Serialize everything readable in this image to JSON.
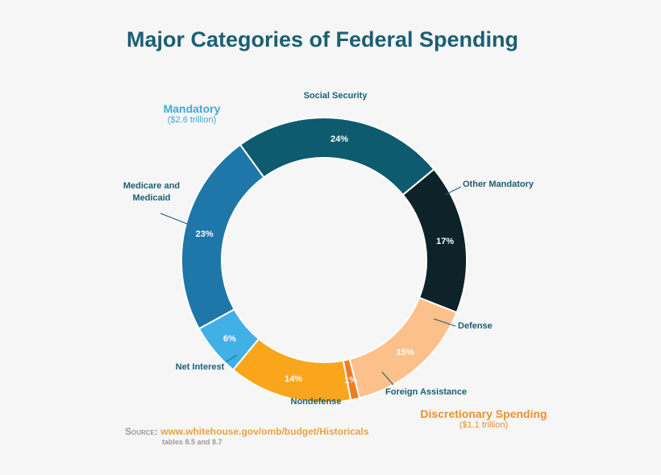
{
  "chart_data": {
    "type": "pie",
    "title": "Major Categories of Federal Spending",
    "categories": [
      "Social Security",
      "Other Mandatory",
      "Defense",
      "Foreign Assistance",
      "Nondefense",
      "Net Interest",
      "Medicare and Medicaid"
    ],
    "values": [
      24,
      17,
      15,
      1,
      14,
      6,
      23
    ],
    "value_labels": [
      "24%",
      "17%",
      "15%",
      "1%",
      "14%",
      "6%",
      "23%"
    ],
    "colors": [
      "#0e5a6e",
      "#0d2329",
      "#fcc08b",
      "#f07d22",
      "#f9a61d",
      "#40b0e6",
      "#1e77a8"
    ],
    "value_label_colors": [
      "#ffffff",
      "#ffffff",
      "#ffffff",
      "#ffffff",
      "#ffffff",
      "#ffffff",
      "#ffffff"
    ],
    "donut": true,
    "groups": [
      {
        "name": "Mandatory",
        "amount": "($2.6 trillion)",
        "color": "#3fa9dc"
      },
      {
        "name": "Discretionary Spending",
        "amount": "($1.1 trillion)",
        "color": "#e8902f"
      }
    ]
  },
  "source": {
    "label": "Source:",
    "url": "www.whitehouse.gov/omb/budget/Historicals",
    "note": "tables 8.5 and 8.7"
  }
}
